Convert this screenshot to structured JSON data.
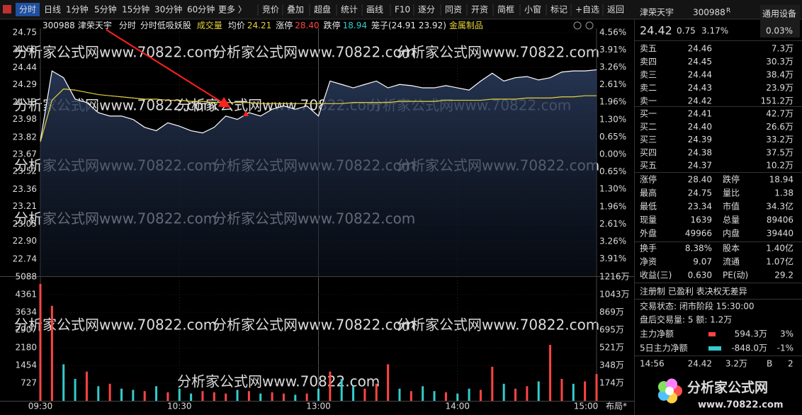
{
  "toolbar": {
    "tabs": [
      "分时",
      "日线",
      "1分钟",
      "5分钟",
      "15分钟",
      "30分钟",
      "60分钟",
      "更多 〉"
    ],
    "tools": [
      "竞价",
      "叠加",
      "超盘",
      "统计",
      "画线",
      "F10",
      "逐分",
      "同资",
      "开资",
      "简框",
      "小窗",
      "标记",
      "+自选",
      "返回"
    ]
  },
  "chart_data": [
    {
      "type": "line",
      "header": {
        "code": "300988",
        "name": "津荣天宇",
        "mode": "分时",
        "formula": "分时低吸妖股",
        "indicator": "成交量",
        "avg_label": "均价",
        "avg_value": "24.21",
        "limit_up_label": "涨停",
        "limit_up": "28.40",
        "limit_down_label": "跌停",
        "limit_down": "18.94",
        "cage": "笼子(24.91 23.92)",
        "sector": "金属制品"
      },
      "x": [
        0,
        5,
        10,
        15,
        20,
        25,
        30,
        35,
        40,
        45,
        50,
        55,
        60,
        65,
        70,
        75,
        80,
        85,
        90,
        95,
        100,
        105,
        110,
        115,
        120,
        125,
        130,
        135,
        140,
        145,
        150,
        155,
        160,
        165,
        170,
        175,
        180,
        185,
        190,
        195,
        200,
        205,
        210,
        215,
        220,
        225,
        230,
        235,
        240
      ],
      "xlim": [
        0,
        240
      ],
      "xticks": [
        {
          "value": 0,
          "label": "09:30"
        },
        {
          "value": 60,
          "label": "10:30"
        },
        {
          "value": 120,
          "label": "13:00"
        },
        {
          "value": 180,
          "label": "14:00"
        },
        {
          "value": 240,
          "label": "15:00"
        }
      ],
      "series": [
        {
          "name": "分时",
          "color": "#ffffff",
          "values": [
            23.79,
            24.41,
            24.35,
            24.16,
            24.13,
            24.04,
            24.01,
            24.01,
            23.98,
            23.91,
            23.88,
            23.95,
            23.92,
            23.88,
            23.86,
            23.91,
            24.01,
            23.98,
            24.04,
            24.01,
            24.07,
            24.1,
            24.07,
            24.1,
            24.01,
            24.32,
            24.29,
            24.26,
            24.29,
            24.32,
            24.26,
            24.29,
            24.28,
            24.26,
            24.26,
            24.28,
            24.26,
            24.24,
            24.32,
            24.39,
            24.32,
            24.35,
            24.36,
            24.33,
            24.35,
            24.4,
            24.41,
            24.41,
            24.42
          ]
        },
        {
          "name": "均价",
          "color": "#e6d23c",
          "values": [
            23.78,
            24.15,
            24.25,
            24.24,
            24.22,
            24.2,
            24.19,
            24.18,
            24.17,
            24.16,
            24.16,
            24.15,
            24.15,
            24.14,
            24.14,
            24.13,
            24.13,
            24.13,
            24.13,
            24.12,
            24.12,
            24.12,
            24.12,
            24.12,
            24.12,
            24.12,
            24.12,
            24.13,
            24.13,
            24.13,
            24.13,
            24.14,
            24.14,
            24.14,
            24.14,
            24.15,
            24.15,
            24.15,
            24.15,
            24.16,
            24.16,
            24.16,
            24.17,
            24.17,
            24.17,
            24.18,
            24.18,
            24.19,
            24.19
          ]
        }
      ],
      "ylim": [
        22.59,
        24.75
      ],
      "yticks": [
        24.75,
        {
          "value": 24.6,
          "label": "24.60"
        },
        24.44,
        24.29,
        24.13,
        23.98,
        23.82,
        23.67,
        23.52,
        23.36,
        23.21,
        23.05,
        {
          "value": 22.9,
          "label": "22.90"
        },
        22.74
      ],
      "y2lim": [
        -4.56,
        4.56
      ],
      "y2ticks": [
        {
          "value": 4.56,
          "label": "4.56%"
        },
        {
          "value": 3.91,
          "label": "3.91%"
        },
        {
          "value": 3.26,
          "label": "3.26%"
        },
        {
          "value": 2.61,
          "label": "2.61%"
        },
        {
          "value": 1.96,
          "label": "1.96%"
        },
        {
          "value": 1.3,
          "label": "1.30%"
        },
        {
          "value": 0.65,
          "label": "0.65%"
        },
        {
          "value": 0,
          "label": "0.00%"
        },
        {
          "value": -0.65,
          "label": "0.65%"
        },
        {
          "value": -1.3,
          "label": "1.30%"
        },
        {
          "value": -1.96,
          "label": "1.96%"
        },
        {
          "value": -2.61,
          "label": "2.61%"
        },
        {
          "value": -3.26,
          "label": "3.26%"
        },
        {
          "value": -3.91,
          "label": "3.91%"
        }
      ]
    },
    {
      "type": "bar",
      "name": "成交量",
      "x": [
        0,
        5,
        10,
        15,
        20,
        25,
        30,
        35,
        40,
        45,
        50,
        55,
        60,
        65,
        70,
        75,
        80,
        85,
        90,
        95,
        100,
        105,
        110,
        115,
        120,
        125,
        130,
        135,
        140,
        145,
        150,
        155,
        160,
        165,
        170,
        175,
        180,
        185,
        190,
        195,
        200,
        205,
        210,
        215,
        220,
        225,
        230,
        235,
        240
      ],
      "xlim": [
        0,
        240
      ],
      "values": [
        4800,
        3900,
        1500,
        900,
        1200,
        600,
        700,
        500,
        450,
        400,
        600,
        350,
        500,
        300,
        400,
        350,
        300,
        450,
        400,
        300,
        350,
        300,
        250,
        300,
        500,
        1200,
        900,
        600,
        500,
        700,
        1500,
        500,
        400,
        600,
        400,
        350,
        300,
        500,
        450,
        1400,
        700,
        500,
        600,
        800,
        2300,
        900,
        700,
        800,
        1100
      ],
      "colors": [
        "#ff4444",
        "#ff4444",
        "#33cccc",
        "#33cccc",
        "#ff4444",
        "#33cccc",
        "#ff4444",
        "#33cccc",
        "#33cccc",
        "#ff4444",
        "#33cccc",
        "#ff4444",
        "#33cccc",
        "#33cccc",
        "#ff4444",
        "#ff4444",
        "#ff4444",
        "#33cccc",
        "#ff4444",
        "#33cccc",
        "#ff4444",
        "#ff4444",
        "#33cccc",
        "#ff4444",
        "#33cccc",
        "#ff4444",
        "#33cccc",
        "#33cccc",
        "#ff4444",
        "#ff4444",
        "#ff4444",
        "#33cccc",
        "#ff4444",
        "#33cccc",
        "#33cccc",
        "#ff4444",
        "#33cccc",
        "#33cccc",
        "#ff4444",
        "#ff4444",
        "#33cccc",
        "#ff4444",
        "#ff4444",
        "#33cccc",
        "#ff4444",
        "#ff4444",
        "#33cccc",
        "#ff4444",
        "#ff4444"
      ],
      "ylim": [
        0,
        5088
      ],
      "yticks": [
        5088,
        4361,
        3634,
        2907,
        2180,
        1454,
        727
      ],
      "y2lim": [
        0,
        1216
      ],
      "y2ticks": [
        {
          "value": 1216,
          "label": "1216万"
        },
        {
          "value": 1043,
          "label": "1043万"
        },
        {
          "value": 869,
          "label": "869万"
        },
        {
          "value": 695,
          "label": "695万"
        },
        {
          "value": 521,
          "label": "521万"
        },
        {
          "value": 348,
          "label": "348万"
        },
        {
          "value": 174,
          "label": "174万"
        }
      ]
    }
  ],
  "quote": {
    "name": "津荣天宇",
    "code": "300988",
    "badge": "R",
    "industry": "通用设备",
    "price": "24.42",
    "change": "0.75",
    "pct": "3.17%",
    "industry_pct": "0.03%",
    "asks": [
      [
        "卖五",
        "24.46",
        "7.3万"
      ],
      [
        "卖四",
        "24.45",
        "30.3万"
      ],
      [
        "卖三",
        "24.44",
        "38.4万"
      ],
      [
        "卖二",
        "24.43",
        "23.9万"
      ],
      [
        "卖一",
        "24.42",
        "151.2万"
      ]
    ],
    "bids": [
      [
        "买一",
        "24.41",
        "42.7万"
      ],
      [
        "买二",
        "24.40",
        "26.6万"
      ],
      [
        "买三",
        "24.39",
        "33.2万"
      ],
      [
        "买四",
        "24.38",
        "37.5万"
      ],
      [
        "买五",
        "24.37",
        "10.2万"
      ]
    ],
    "stats": [
      [
        "涨停",
        "28.40",
        "跌停",
        "18.94"
      ],
      [
        "最高",
        "24.75",
        "量比",
        "1.38"
      ],
      [
        "最低",
        "23.34",
        "市值",
        "34.3亿"
      ],
      [
        "现量",
        "1639",
        "总量",
        "89406"
      ],
      [
        "外盘",
        "49966",
        "内盘",
        "39440"
      ],
      [
        "换手",
        "8.38%",
        "股本",
        "1.40亿"
      ],
      [
        "净资",
        "9.07",
        "流通",
        "1.07亿"
      ],
      [
        "收益(三)",
        "0.630",
        "PE(动)",
        "29.2"
      ]
    ],
    "tags": "注册制 已盈利 表决权无差异",
    "status": "交易状态: 闭市阶段 15:30:00",
    "after_hours": "盘后交易量: 5  额: 1.2万",
    "flows": [
      [
        "主力净额",
        "594.3万",
        "3%"
      ],
      [
        "5日主力净额",
        "-848.0万",
        "-1%"
      ]
    ],
    "trades": [
      [
        "14:56",
        "24.42",
        "3.2万",
        "B",
        "2"
      ]
    ]
  },
  "footer_right": "布局*",
  "watermark": "分析家公式网www.70822.com",
  "logo": {
    "name": "分析家公式网",
    "url": "www.70822.com"
  }
}
